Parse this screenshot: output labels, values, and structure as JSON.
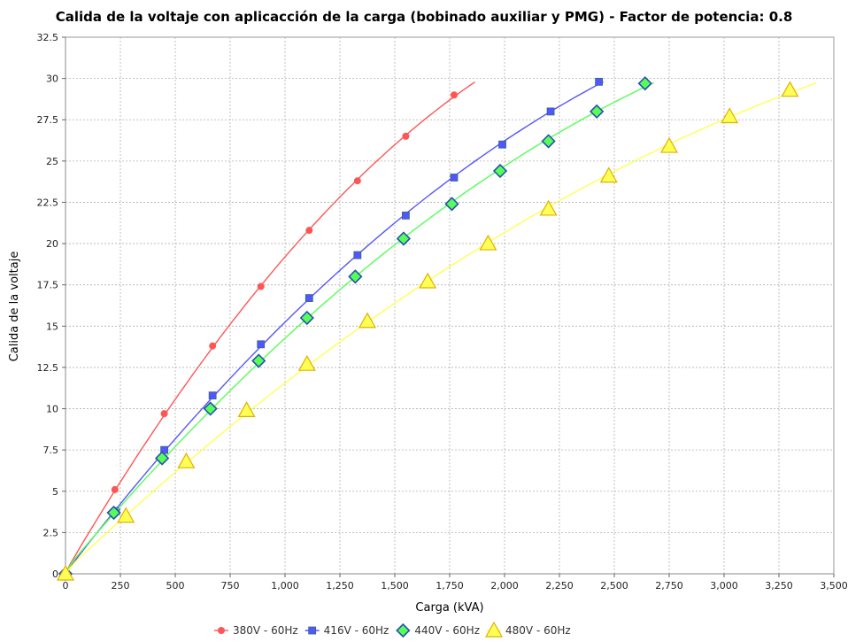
{
  "chart_data": {
    "type": "line",
    "title": "Calida de la voltaje con aplicacción de la carga (bobinado auxiliar y PMG) - Factor de potencia: 0.8",
    "xlabel": "Carga (kVA)",
    "ylabel": "Calida de la voltaje",
    "xlim": [
      0,
      3500
    ],
    "ylim": [
      0,
      32.5
    ],
    "x_ticks": [
      0,
      250,
      500,
      750,
      1000,
      1250,
      1500,
      1750,
      2000,
      2250,
      2500,
      2750,
      3000,
      3250,
      3500
    ],
    "x_tick_labels": [
      "0",
      "250",
      "500",
      "750",
      "1,000",
      "1,250",
      "1,500",
      "1,750",
      "2,000",
      "2,250",
      "2,500",
      "2,750",
      "3,000",
      "3,250",
      "3,500"
    ],
    "y_ticks": [
      0,
      2.5,
      5,
      7.5,
      10,
      12.5,
      15,
      17.5,
      20,
      22.5,
      25,
      27.5,
      30,
      32.5
    ],
    "y_tick_labels": [
      "0",
      "2.5",
      "5",
      "7.5",
      "10",
      "12.5",
      "15",
      "17.5",
      "20",
      "22.5",
      "25",
      "27.5",
      "30",
      "32.5"
    ],
    "grid": true,
    "legend_position": "bottom",
    "series": [
      {
        "name": "380V - 60Hz",
        "color": "#ff5555",
        "marker": "circle",
        "points": [
          [
            0,
            0
          ],
          [
            225,
            5.1
          ],
          [
            450,
            9.7
          ],
          [
            670,
            13.8
          ],
          [
            890,
            17.4
          ],
          [
            1110,
            20.8
          ],
          [
            1330,
            23.8
          ],
          [
            1550,
            26.5
          ],
          [
            1770,
            29.0
          ]
        ],
        "curve_end_x": 1865
      },
      {
        "name": "416V - 60Hz",
        "color": "#5555ff",
        "marker": "square",
        "points": [
          [
            0,
            0
          ],
          [
            230,
            3.8
          ],
          [
            450,
            7.5
          ],
          [
            670,
            10.8
          ],
          [
            890,
            13.9
          ],
          [
            1110,
            16.7
          ],
          [
            1330,
            19.3
          ],
          [
            1550,
            21.7
          ],
          [
            1770,
            24.0
          ],
          [
            1990,
            26.0
          ],
          [
            2210,
            28.0
          ],
          [
            2430,
            29.8
          ]
        ],
        "curve_end_x": 2450
      },
      {
        "name": "440V - 60Hz",
        "color": "#55ff55",
        "marker": "diamond",
        "points": [
          [
            0,
            0
          ],
          [
            220,
            3.7
          ],
          [
            440,
            7.0
          ],
          [
            660,
            10.0
          ],
          [
            880,
            12.9
          ],
          [
            1100,
            15.5
          ],
          [
            1320,
            18.0
          ],
          [
            1540,
            20.3
          ],
          [
            1760,
            22.4
          ],
          [
            1980,
            24.4
          ],
          [
            2200,
            26.2
          ],
          [
            2420,
            28.0
          ],
          [
            2640,
            29.7
          ]
        ],
        "curve_end_x": 2680
      },
      {
        "name": "480V - 60Hz",
        "color": "#ffff55",
        "marker": "triangle",
        "points": [
          [
            0,
            0
          ],
          [
            275,
            3.5
          ],
          [
            550,
            6.8
          ],
          [
            825,
            9.9
          ],
          [
            1100,
            12.7
          ],
          [
            1375,
            15.3
          ],
          [
            1650,
            17.7
          ],
          [
            1925,
            20.0
          ],
          [
            2200,
            22.1
          ],
          [
            2475,
            24.1
          ],
          [
            2750,
            25.9
          ],
          [
            3025,
            27.7
          ],
          [
            3300,
            29.3
          ]
        ],
        "curve_end_x": 3420
      }
    ]
  }
}
